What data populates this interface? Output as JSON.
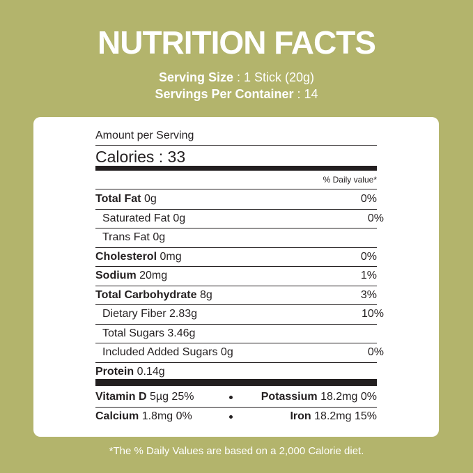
{
  "header": {
    "title": "NUTRITION FACTS",
    "serving_size": {
      "label": "Serving Size",
      "value": ": 1 Stick (20g)"
    },
    "servings_per_container": {
      "label": "Servings Per Container",
      "value": ": 14"
    }
  },
  "panel": {
    "amount_per_serving": "Amount per Serving",
    "calories": {
      "label": "Calories :",
      "value": "33"
    },
    "daily_value_heading": "% Daily value*",
    "nutrients": [
      {
        "name": "Total Fat",
        "amount": "0g",
        "dv": "0%"
      },
      {
        "name": "Saturated Fat",
        "amount": "0g",
        "dv": "0%",
        "indent": true
      },
      {
        "name": "Trans Fat",
        "amount": "0g",
        "indent": true
      },
      {
        "name": "Cholesterol",
        "amount": "0mg",
        "dv": "0%"
      },
      {
        "name": "Sodium",
        "amount": "20mg",
        "dv": "1%"
      },
      {
        "name": "Total Carbohydrate",
        "amount": "8g",
        "dv": "3%"
      },
      {
        "name": "Dietary Fiber",
        "amount": "2.83g",
        "dv": "10%",
        "indent": true
      },
      {
        "name": "Total Sugars",
        "amount": "3.46g",
        "indent": true
      },
      {
        "name": "Included Added Sugars",
        "amount": "0g",
        "dv": "0%",
        "indent": true
      },
      {
        "name": "Protein",
        "amount": "0.14g"
      }
    ],
    "vitamins": [
      [
        {
          "name": "Vitamin D",
          "amount": "5µg 25%"
        },
        {
          "name": "Potassium",
          "amount": "18.2mg 0%"
        }
      ],
      [
        {
          "name": "Calcium",
          "amount": "1.8mg 0%"
        },
        {
          "name": "Iron",
          "amount": "18.2mg 15%"
        }
      ]
    ]
  },
  "footnote": "*The % Daily Values are based on a 2,000 Calorie diet."
}
